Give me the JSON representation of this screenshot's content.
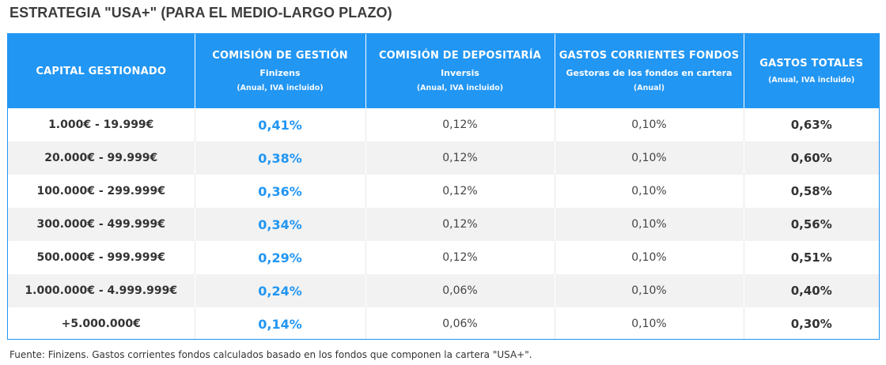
{
  "title": "ESTRATEGIA \"USA+\" (PARA EL MEDIO-LARGO PLAZO)",
  "colors": {
    "header_bg": "#2196f3",
    "accent": "#2196f3",
    "row_alt": "#f2f2f2"
  },
  "headers": [
    {
      "main": "CAPITAL GESTIONADO",
      "sub": "",
      "note": ""
    },
    {
      "main": "COMISIÓN DE GESTIÓN",
      "sub": "Finizens",
      "note": "(Anual, IVA incluido)"
    },
    {
      "main": "COMISIÓN DE DEPOSITARÍA",
      "sub": "Inversis",
      "note": "(Anual, IVA incluido)"
    },
    {
      "main": "GASTOS CORRIENTES FONDOS",
      "sub": "Gestoras de los fondos en cartera",
      "note": "(Anual)"
    },
    {
      "main": "GASTOS TOTALES",
      "sub": "",
      "note": "(Anual, IVA incluido)"
    }
  ],
  "rows": [
    {
      "capital": "1.000€ - 19.999€",
      "gestion": "0,41%",
      "depositaria": "0,12%",
      "corrientes": "0,10%",
      "total": "0,63%"
    },
    {
      "capital": "20.000€ - 99.999€",
      "gestion": "0,38%",
      "depositaria": "0,12%",
      "corrientes": "0,10%",
      "total": "0,60%"
    },
    {
      "capital": "100.000€ - 299.999€",
      "gestion": "0,36%",
      "depositaria": "0,12%",
      "corrientes": "0,10%",
      "total": "0,58%"
    },
    {
      "capital": "300.000€ - 499.999€",
      "gestion": "0,34%",
      "depositaria": "0,12%",
      "corrientes": "0,10%",
      "total": "0,56%"
    },
    {
      "capital": "500.000€ - 999.999€",
      "gestion": "0,29%",
      "depositaria": "0,12%",
      "corrientes": "0,10%",
      "total": "0,51%"
    },
    {
      "capital": "1.000.000€ - 4.999.999€",
      "gestion": "0,24%",
      "depositaria": "0,06%",
      "corrientes": "0,10%",
      "total": "0,40%"
    },
    {
      "capital": "+5.000.000€",
      "gestion": "0,14%",
      "depositaria": "0,06%",
      "corrientes": "0,10%",
      "total": "0,30%"
    }
  ],
  "footer": "Fuente: Finizens. Gastos corrientes fondos calculados basado en los fondos que componen la cartera \"USA+\"."
}
